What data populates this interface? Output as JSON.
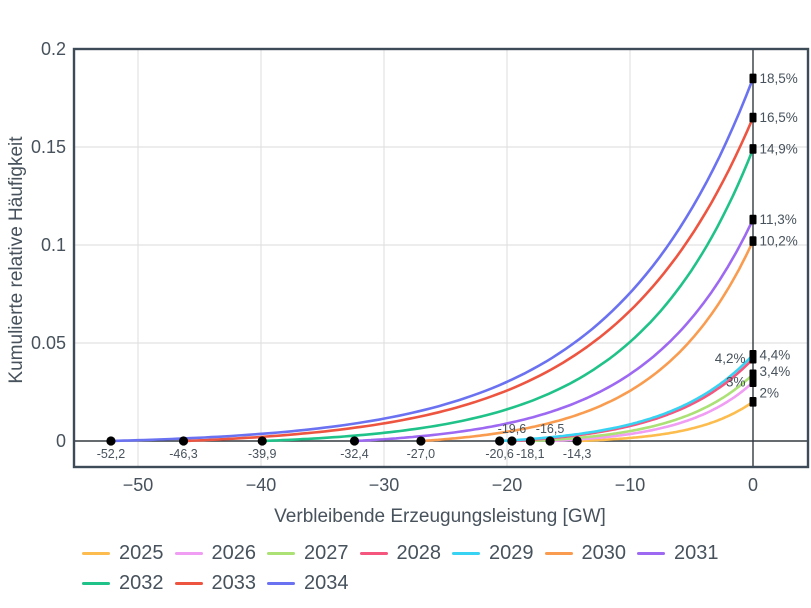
{
  "chart_data": {
    "type": "line",
    "title": "",
    "xlabel": "Verbleibende Erzeugungsleistung [GW]",
    "ylabel": "Kumulierte relative Häufigkeit",
    "xlim": [
      -55.2,
      4.5
    ],
    "ylim": [
      -0.0133,
      0.2
    ],
    "grid": true,
    "legend_position": "bottom-left",
    "x_ticks": [
      {
        "v": -50,
        "label": "−50"
      },
      {
        "v": -40,
        "label": "−40"
      },
      {
        "v": -30,
        "label": "−30"
      },
      {
        "v": -20,
        "label": "−20"
      },
      {
        "v": -10,
        "label": "−10"
      },
      {
        "v": 0,
        "label": "0"
      }
    ],
    "y_ticks": [
      {
        "v": 0,
        "label": "0"
      },
      {
        "v": 0.05,
        "label": "0.05"
      },
      {
        "v": 0.1,
        "label": "0.1"
      },
      {
        "v": 0.15,
        "label": "0.15"
      },
      {
        "v": 0.2,
        "label": "0.2"
      }
    ],
    "series": [
      {
        "name": "2025",
        "color": "#fcbd4e",
        "start_gw": -14.3,
        "start_label": "-14,3",
        "start_label_pos": "below",
        "end_value": 0.02,
        "end_label": "2%",
        "end_label_side": "right",
        "end_label_dy": -9,
        "shape_a": 3.0
      },
      {
        "name": "2026",
        "color": "#f09df4",
        "start_gw": -16.5,
        "start_label": "-16,5",
        "start_label_pos": "above",
        "end_value": 0.03,
        "end_label": "3%",
        "end_label_side": "left",
        "end_label_dy": 0,
        "shape_a": 3.0
      },
      {
        "name": "2027",
        "color": "#abe175",
        "start_gw": -18.1,
        "start_label": "-18,1",
        "start_label_pos": "below",
        "end_value": 0.034,
        "end_label": "3,4%",
        "end_label_side": "right",
        "end_label_dy": -3,
        "shape_a": 3.0
      },
      {
        "name": "2028",
        "color": "#f4567e",
        "start_gw": -19.6,
        "start_label": "-19,6",
        "start_label_pos": "above",
        "end_value": 0.042,
        "end_label": "4,2%",
        "end_label_side": "left",
        "end_label_dy": 0,
        "shape_a": 2.9
      },
      {
        "name": "2029",
        "color": "#38d3f3",
        "start_gw": -20.6,
        "start_label": "-20,6",
        "start_label_pos": "below",
        "end_value": 0.044,
        "end_label": "4,4%",
        "end_label_side": "right",
        "end_label_dy": 0,
        "shape_a": 3.0
      },
      {
        "name": "2030",
        "color": "#fa9c4f",
        "start_gw": -27.0,
        "start_label": "-27,0",
        "start_label_pos": "below",
        "end_value": 0.102,
        "end_label": "10,2%",
        "end_label_side": "right",
        "end_label_dy": 0,
        "shape_a": 3.5
      },
      {
        "name": "2031",
        "color": "#9e69f2",
        "start_gw": -32.4,
        "start_label": "-32,4",
        "start_label_pos": "below",
        "end_value": 0.113,
        "end_label": "11,3%",
        "end_label_side": "right",
        "end_label_dy": 0,
        "shape_a": 3.7
      },
      {
        "name": "2032",
        "color": "#1fc288",
        "start_gw": -39.9,
        "start_label": "-39,9",
        "start_label_pos": "below",
        "end_value": 0.149,
        "end_label": "14,9%",
        "end_label_side": "right",
        "end_label_dy": 0,
        "shape_a": 4.2
      },
      {
        "name": "2033",
        "color": "#ee5541",
        "start_gw": -46.3,
        "start_label": "-46,3",
        "start_label_pos": "below",
        "end_value": 0.165,
        "end_label": "16,5%",
        "end_label_side": "right",
        "end_label_dy": 0,
        "shape_a": 4.1
      },
      {
        "name": "2034",
        "color": "#6b72f1",
        "start_gw": -52.2,
        "start_label": "-52,2",
        "start_label_pos": "below",
        "end_value": 0.185,
        "end_label": "18,5%",
        "end_label_side": "right",
        "end_label_dy": 0,
        "shape_a": 4.6
      }
    ],
    "colors": {
      "text": "#47525c",
      "border": "#3d4a57",
      "grid": "#e2e2e2",
      "zero_line": "#343a40",
      "marker": "#000000"
    }
  }
}
